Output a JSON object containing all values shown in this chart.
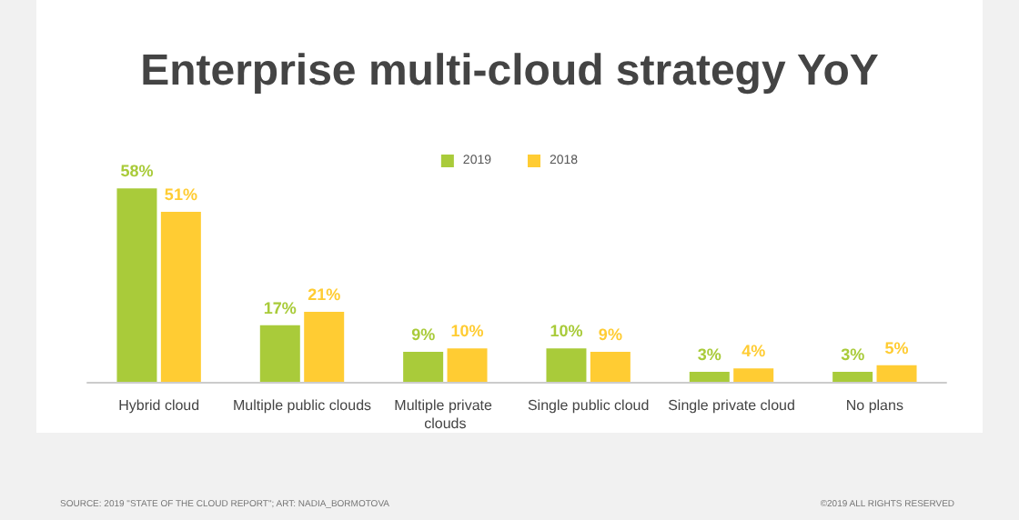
{
  "chart_data": {
    "type": "bar",
    "title": "Enterprise multi-cloud strategy YoY",
    "categories": [
      "Hybrid cloud",
      "Multiple public clouds",
      "Multiple private clouds",
      "Single public cloud",
      "Single private cloud",
      "No plans"
    ],
    "series": [
      {
        "name": "2019",
        "color": "#a9cb3a",
        "values": [
          58,
          17,
          9,
          10,
          3,
          3
        ],
        "value_labels": [
          "58%",
          "17%",
          "9%",
          "10%",
          "3%",
          "3%"
        ]
      },
      {
        "name": "2018",
        "color": "#ffcc33",
        "values": [
          51,
          21,
          10,
          9,
          4,
          5
        ],
        "value_labels": [
          "51%",
          "21%",
          "10%",
          "9%",
          "4%",
          "5%"
        ]
      }
    ],
    "legend": "top",
    "annotations": [
      "SOURCE: 2019 \"STATE OF THE CLOUD REPORT\"; ART: NADIA_BORMOTOVA",
      "©2019 ALL RIGHTS RESERVED"
    ]
  }
}
